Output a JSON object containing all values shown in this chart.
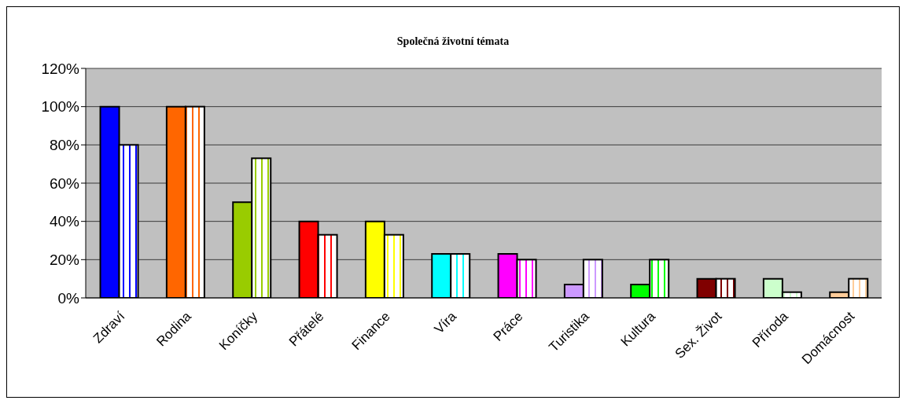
{
  "chart_data": {
    "type": "bar",
    "title": "Společná životní témata",
    "categories": [
      "Zdraví",
      "Rodina",
      "Koníčky",
      "Přátelé",
      "Finance",
      "Víra",
      "Práce",
      "Turistika",
      "Kultura",
      "Sex. Život",
      "Příroda",
      "Domácnost"
    ],
    "series": [
      {
        "colors": [
          "#0000ff",
          "#ff6600",
          "#99cc00",
          "#ff0000",
          "#ffff00",
          "#00ffff",
          "#ff00ff",
          "#cc99ff",
          "#00ff00",
          "#800000",
          "#ccffcc",
          "#ffcc99"
        ],
        "values": [
          100,
          100,
          50,
          40,
          40,
          23,
          23,
          7,
          7,
          10,
          10,
          3
        ]
      },
      {
        "colors": [
          "#0000ff",
          "#ff6600",
          "#99cc00",
          "#ff0000",
          "#ffff00",
          "#00ffff",
          "#ff00ff",
          "#cc99ff",
          "#00ff00",
          "#800000",
          "#ccffcc",
          "#ffcc99"
        ],
        "values": [
          80,
          100,
          73,
          33,
          33,
          23,
          20,
          20,
          20,
          10,
          3,
          10
        ]
      }
    ],
    "ylim": [
      0,
      120
    ],
    "yticks": [
      {
        "value": 0,
        "label": "0%"
      },
      {
        "value": 20,
        "label": "20%"
      },
      {
        "value": 40,
        "label": "40%"
      },
      {
        "value": 60,
        "label": "60%"
      },
      {
        "value": 80,
        "label": "80%"
      },
      {
        "value": 100,
        "label": "100%"
      },
      {
        "value": 120,
        "label": "120%"
      }
    ],
    "grid": "y"
  }
}
